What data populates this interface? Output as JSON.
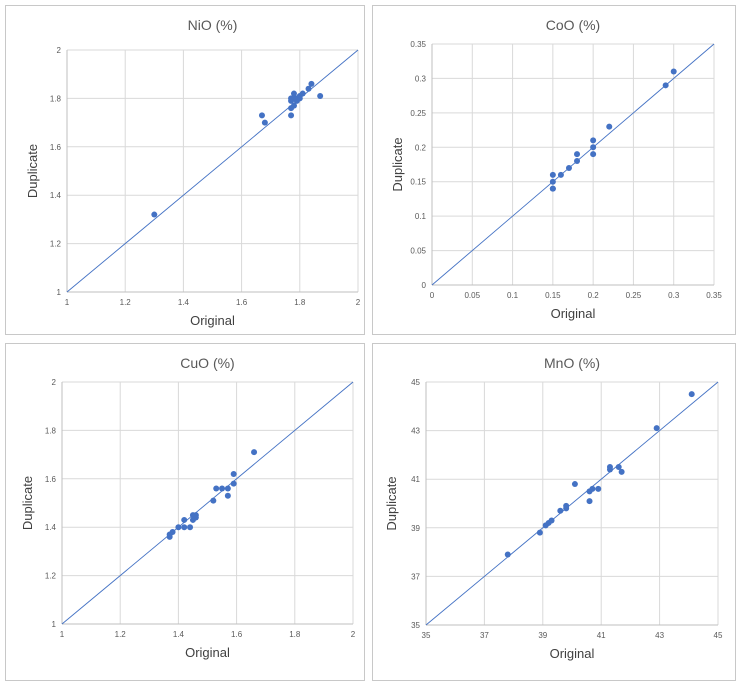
{
  "colors": {
    "point": "#4472c4",
    "line": "#4472c4",
    "grid": "#d9d9d9",
    "axis": "#bfbfbf",
    "border": "#c8c8c8"
  },
  "chart_data": [
    {
      "type": "scatter",
      "title": "NiO (%)",
      "xlabel": "Original",
      "ylabel": "Duplicate",
      "xlim": [
        1,
        2
      ],
      "ylim": [
        1,
        2
      ],
      "xticks": [
        "1",
        "1.2",
        "1.4",
        "1.6",
        "1.8",
        "2"
      ],
      "yticks": [
        "1",
        "1.2",
        "1.4",
        "1.6",
        "1.8",
        "2"
      ],
      "reference_line": "y = x",
      "points": [
        [
          1.3,
          1.32
        ],
        [
          1.67,
          1.73
        ],
        [
          1.68,
          1.7
        ],
        [
          1.77,
          1.73
        ],
        [
          1.77,
          1.76
        ],
        [
          1.77,
          1.8
        ],
        [
          1.77,
          1.79
        ],
        [
          1.78,
          1.8
        ],
        [
          1.78,
          1.82
        ],
        [
          1.78,
          1.77
        ],
        [
          1.79,
          1.79
        ],
        [
          1.79,
          1.8
        ],
        [
          1.8,
          1.8
        ],
        [
          1.8,
          1.81
        ],
        [
          1.81,
          1.82
        ],
        [
          1.83,
          1.84
        ],
        [
          1.84,
          1.86
        ],
        [
          1.87,
          1.81
        ]
      ]
    },
    {
      "type": "scatter",
      "title": "CoO (%)",
      "xlabel": "Original",
      "ylabel": "Duplicate",
      "xlim": [
        0,
        0.35
      ],
      "ylim": [
        0,
        0.35
      ],
      "xticks": [
        "0",
        "0.05",
        "0.1",
        "0.15",
        "0.2",
        "0.25",
        "0.3",
        "0.35"
      ],
      "yticks": [
        "0",
        "0.05",
        "0.1",
        "0.15",
        "0.2",
        "0.25",
        "0.3",
        "0.35"
      ],
      "reference_line": "y = x",
      "points": [
        [
          0.15,
          0.16
        ],
        [
          0.15,
          0.15
        ],
        [
          0.15,
          0.14
        ],
        [
          0.15,
          0.14
        ],
        [
          0.16,
          0.16
        ],
        [
          0.17,
          0.17
        ],
        [
          0.18,
          0.18
        ],
        [
          0.18,
          0.19
        ],
        [
          0.2,
          0.2
        ],
        [
          0.2,
          0.21
        ],
        [
          0.2,
          0.19
        ],
        [
          0.22,
          0.23
        ],
        [
          0.29,
          0.29
        ],
        [
          0.3,
          0.31
        ]
      ]
    },
    {
      "type": "scatter",
      "title": "CuO (%)",
      "xlabel": "Original",
      "ylabel": "Duplicate",
      "xlim": [
        1,
        2
      ],
      "ylim": [
        1,
        2
      ],
      "xticks": [
        "1",
        "1.2",
        "1.4",
        "1.6",
        "1.8",
        "2"
      ],
      "yticks": [
        "1",
        "1.2",
        "1.4",
        "1.6",
        "1.8",
        "2"
      ],
      "reference_line": "y = x",
      "points": [
        [
          1.37,
          1.36
        ],
        [
          1.37,
          1.37
        ],
        [
          1.38,
          1.38
        ],
        [
          1.4,
          1.4
        ],
        [
          1.42,
          1.4
        ],
        [
          1.42,
          1.43
        ],
        [
          1.44,
          1.4
        ],
        [
          1.45,
          1.43
        ],
        [
          1.45,
          1.45
        ],
        [
          1.46,
          1.44
        ],
        [
          1.46,
          1.45
        ],
        [
          1.52,
          1.51
        ],
        [
          1.53,
          1.56
        ],
        [
          1.55,
          1.56
        ],
        [
          1.57,
          1.53
        ],
        [
          1.57,
          1.56
        ],
        [
          1.59,
          1.58
        ],
        [
          1.59,
          1.62
        ],
        [
          1.66,
          1.71
        ]
      ]
    },
    {
      "type": "scatter",
      "title": "MnO (%)",
      "xlabel": "Original",
      "ylabel": "Duplicate",
      "xlim": [
        35,
        45
      ],
      "ylim": [
        35,
        45
      ],
      "xticks": [
        "35",
        "37",
        "39",
        "41",
        "43",
        "45"
      ],
      "yticks": [
        "35",
        "37",
        "39",
        "41",
        "43",
        "45"
      ],
      "reference_line": "y = x",
      "points": [
        [
          37.8,
          37.9
        ],
        [
          38.9,
          38.8
        ],
        [
          39.1,
          39.1
        ],
        [
          39.2,
          39.2
        ],
        [
          39.3,
          39.3
        ],
        [
          39.6,
          39.7
        ],
        [
          39.8,
          39.8
        ],
        [
          39.8,
          39.9
        ],
        [
          40.1,
          40.8
        ],
        [
          40.6,
          40.1
        ],
        [
          40.6,
          40.5
        ],
        [
          40.7,
          40.6
        ],
        [
          40.9,
          40.6
        ],
        [
          41.3,
          41.4
        ],
        [
          41.3,
          41.5
        ],
        [
          41.6,
          41.5
        ],
        [
          41.7,
          41.3
        ],
        [
          42.9,
          43.1
        ],
        [
          44.1,
          44.5
        ]
      ]
    }
  ]
}
